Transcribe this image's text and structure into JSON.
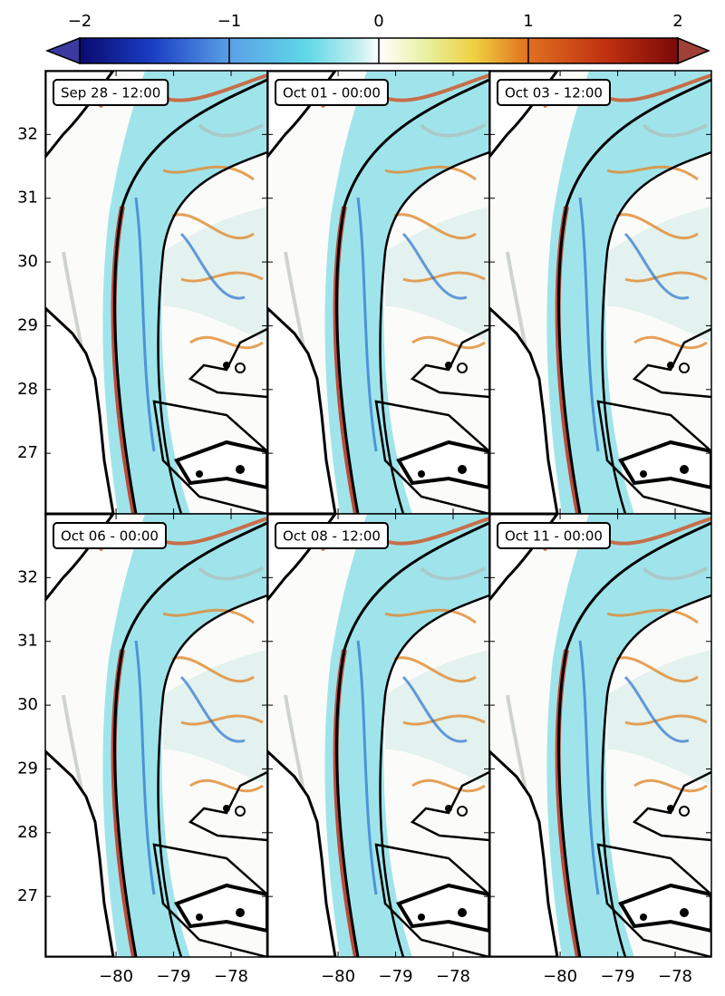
{
  "colorbar": {
    "lim": [
      -2,
      2
    ],
    "ticks": [
      {
        "value": -2,
        "label": "−2"
      },
      {
        "value": -1,
        "label": "−1"
      },
      0,
      1,
      2
    ]
  },
  "axes": {
    "xlim": [
      -81.23,
      -77.37
    ],
    "ylim": [
      26.05,
      33.0
    ],
    "xticks": [
      {
        "value": -80,
        "label": "−80"
      },
      {
        "value": -79,
        "label": "−79"
      },
      {
        "value": -78,
        "label": "−78"
      }
    ],
    "yticks": [
      27,
      28,
      29,
      30,
      31,
      32
    ]
  },
  "panels": [
    {
      "label": "Sep 28 - 12:00"
    },
    {
      "label": "Oct 01 - 00:00"
    },
    {
      "label": "Oct 03 - 12:00"
    },
    {
      "label": "Oct 06 - 00:00"
    },
    {
      "label": "Oct 08 - 12:00"
    },
    {
      "label": "Oct 11 - 00:00"
    }
  ]
}
